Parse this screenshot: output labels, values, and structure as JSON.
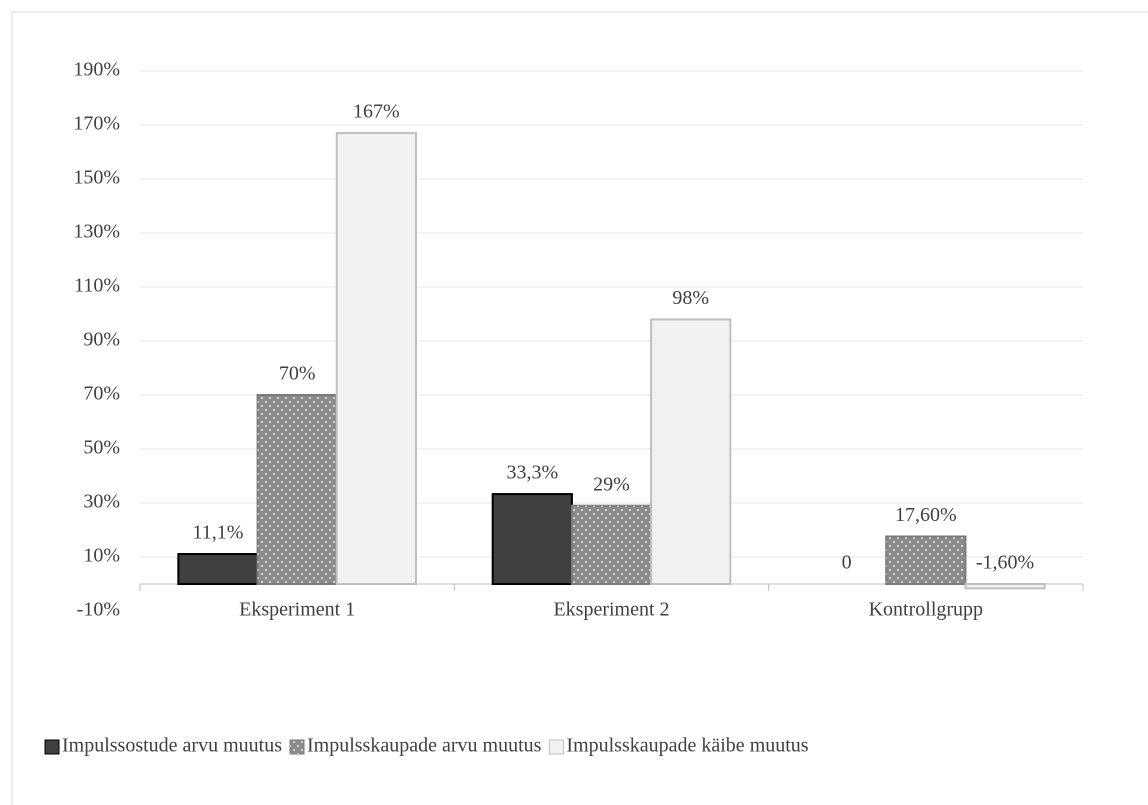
{
  "chart_data": {
    "type": "bar",
    "categories": [
      "Eksperiment 1",
      "Eksperiment 2",
      "Kontrollgrupp"
    ],
    "series": [
      {
        "name": "Impulssostude arvu muutus",
        "color": "#404040",
        "stroke": "#000000",
        "values": [
          11.1,
          33.3,
          0
        ],
        "value_labels": [
          "11,1%",
          "33,3%",
          "0"
        ]
      },
      {
        "name": "Impulsskaupade arvu muutus",
        "color": "#8c8c8c",
        "stroke": "#7a7a7a",
        "pattern": "dots",
        "values": [
          70,
          29,
          17.6
        ],
        "value_labels": [
          "70%",
          "29%",
          "17,60%"
        ]
      },
      {
        "name": "Impulsskaupade käibe muutus",
        "color": "#f2f2f2",
        "stroke": "#bfbfbf",
        "values": [
          167,
          98,
          -1.6
        ],
        "value_labels": [
          "167%",
          "98%",
          "-1,60%"
        ]
      }
    ],
    "ylim": [
      -10,
      190
    ],
    "yticks": [
      {
        "value": -10,
        "label": "-10%"
      },
      {
        "value": 10,
        "label": "10%"
      },
      {
        "value": 30,
        "label": "30%"
      },
      {
        "value": 50,
        "label": "50%"
      },
      {
        "value": 70,
        "label": "70%"
      },
      {
        "value": 90,
        "label": "90%"
      },
      {
        "value": 110,
        "label": "110%"
      },
      {
        "value": 130,
        "label": "130%"
      },
      {
        "value": 150,
        "label": "150%"
      },
      {
        "value": 170,
        "label": "170%"
      },
      {
        "value": 190,
        "label": "190%"
      }
    ],
    "grid": true,
    "legend": "bottom"
  }
}
